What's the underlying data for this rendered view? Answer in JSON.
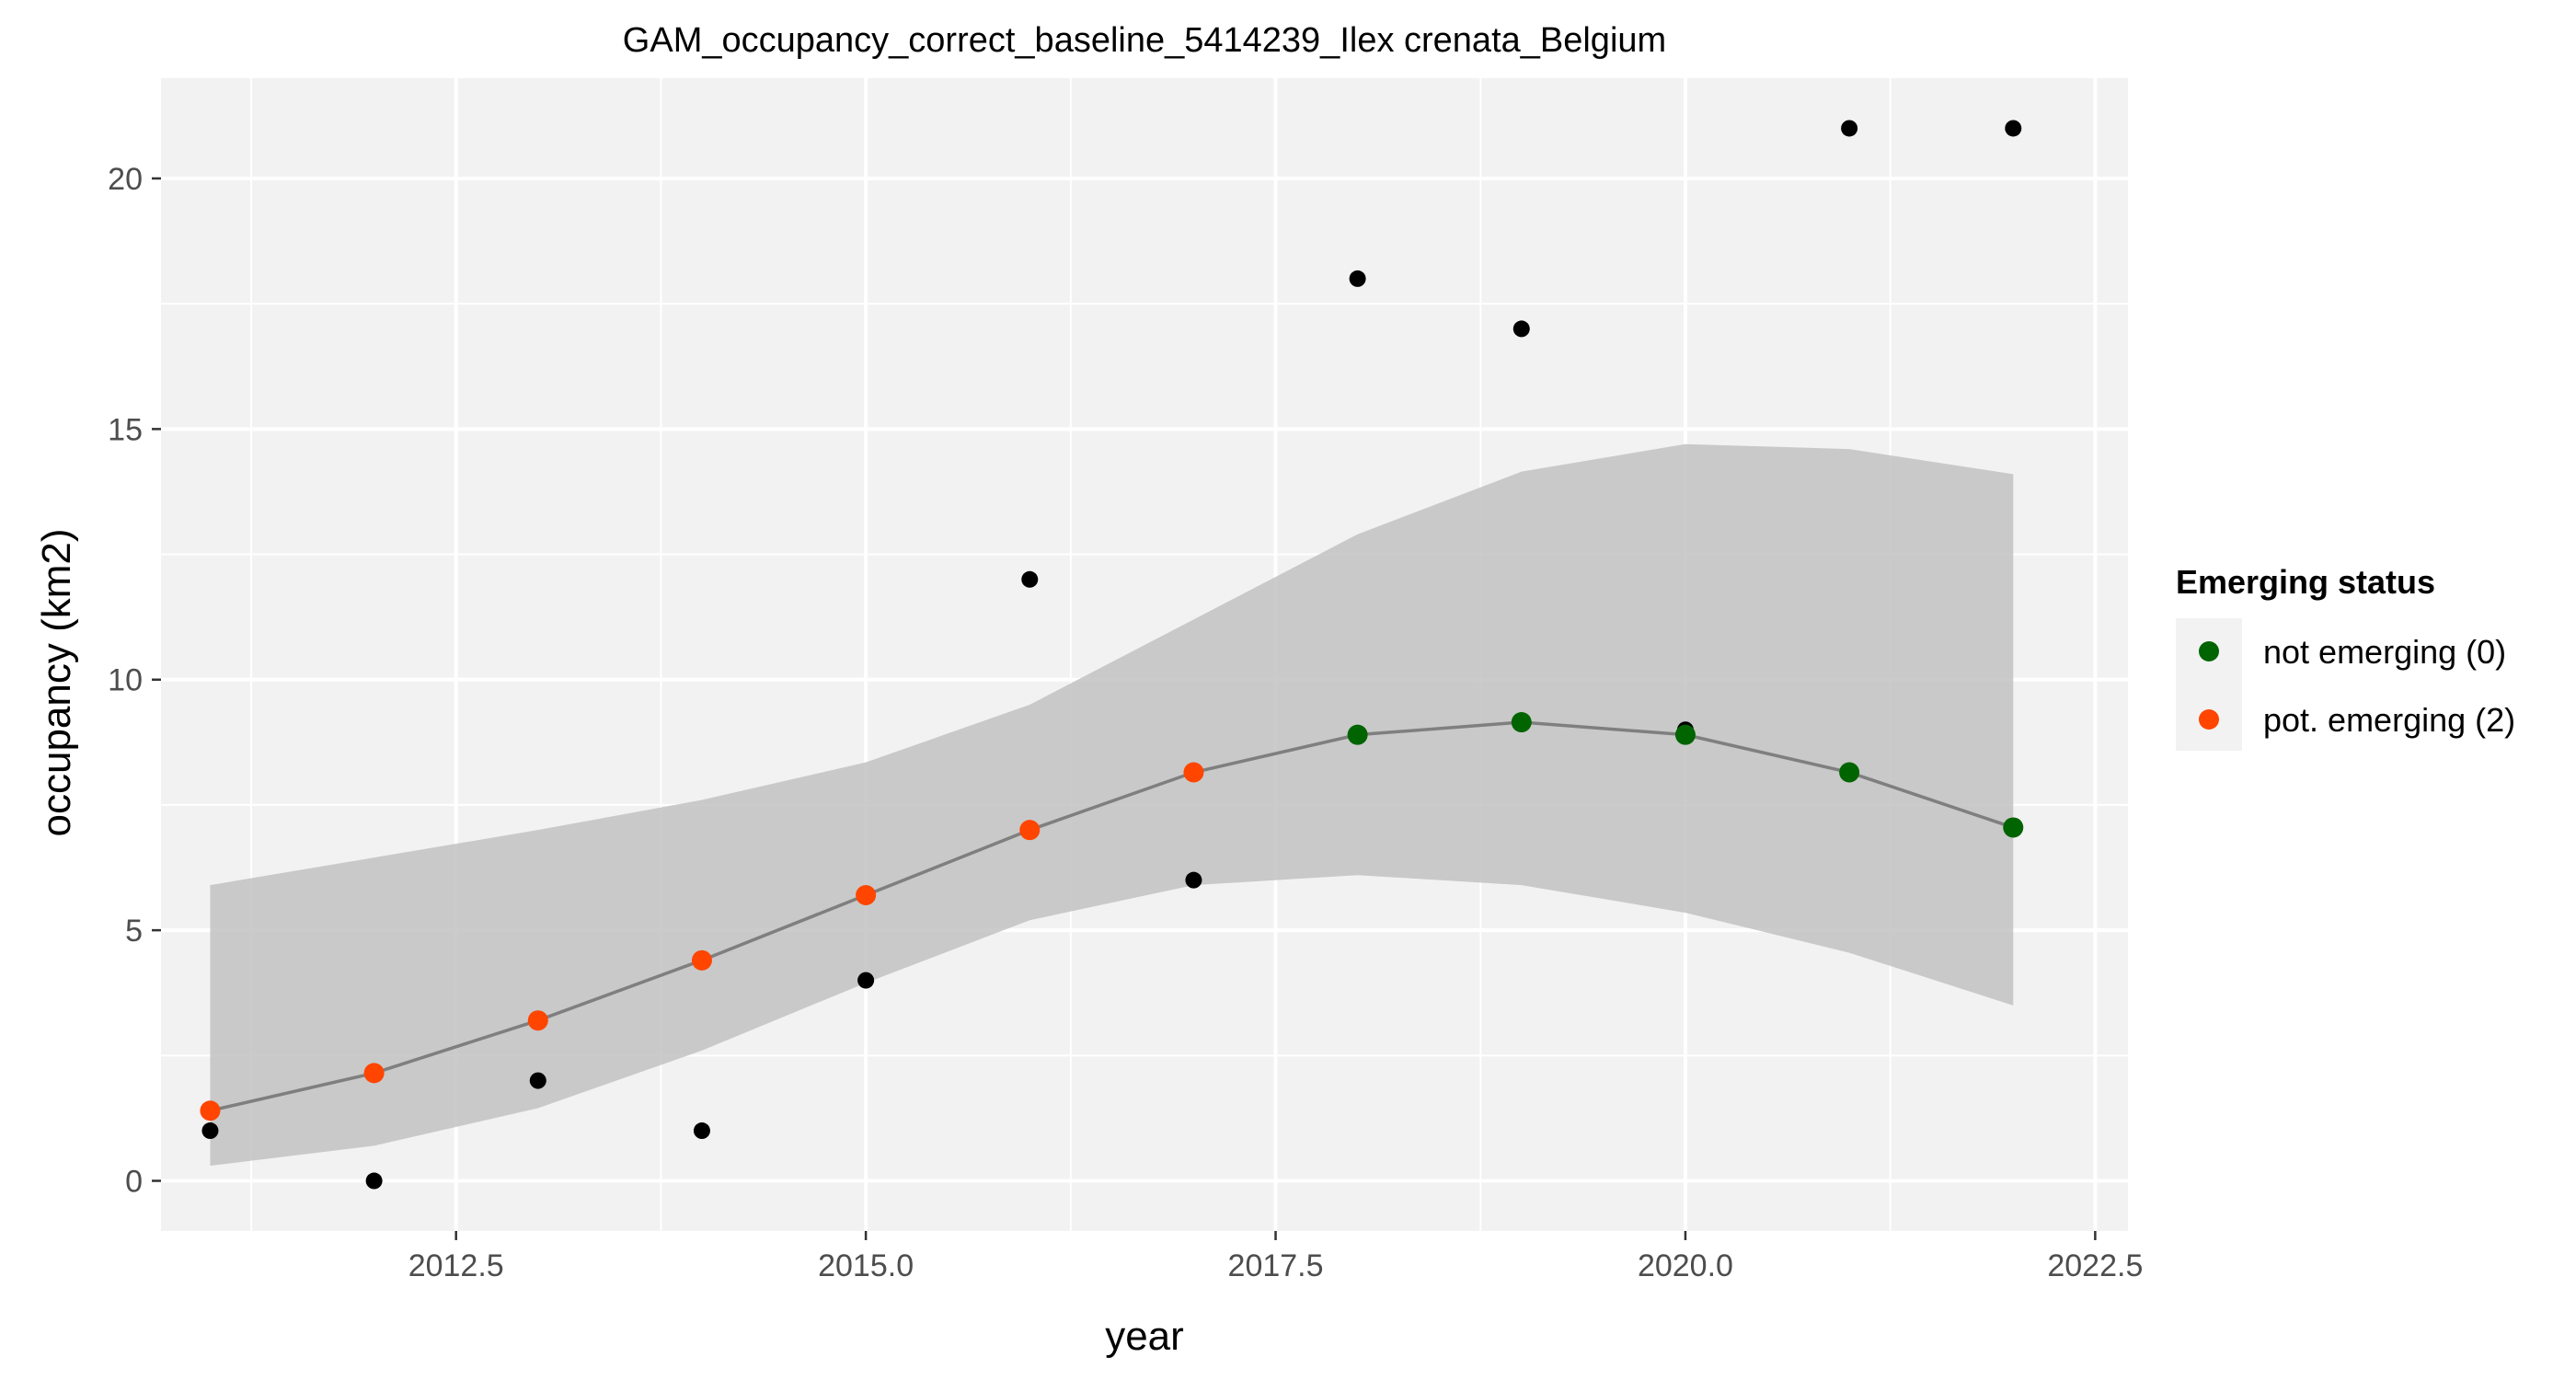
{
  "chart_data": {
    "type": "scatter",
    "title": "GAM_occupancy_correct_baseline_5414239_Ilex crenata_Belgium",
    "xlabel": "year",
    "ylabel": "occupancy (km2)",
    "xlim": [
      2010.7,
      2022.7
    ],
    "ylim": [
      -1.0,
      22.0
    ],
    "x_ticks": [
      2012.5,
      2015.0,
      2017.5,
      2020.0,
      2022.5
    ],
    "x_tick_labels": [
      "2012.5",
      "2015.0",
      "2017.5",
      "2020.0",
      "2022.5"
    ],
    "y_ticks": [
      0,
      5,
      10,
      15,
      20
    ],
    "y_tick_labels": [
      "0",
      "5",
      "10",
      "15",
      "20"
    ],
    "grid": true,
    "observed": {
      "x": [
        2011,
        2012,
        2013,
        2014,
        2015,
        2016,
        2017,
        2018,
        2019,
        2020,
        2021,
        2022
      ],
      "y": [
        1,
        0,
        2,
        1,
        4,
        12,
        6,
        18,
        17,
        9,
        21,
        21
      ],
      "color": "#000000"
    },
    "fit": {
      "x": [
        2011,
        2012,
        2013,
        2014,
        2015,
        2016,
        2017,
        2018,
        2019,
        2020,
        2021,
        2022
      ],
      "y": [
        1.4,
        2.15,
        3.2,
        4.4,
        5.7,
        7.0,
        8.15,
        8.9,
        9.15,
        8.9,
        8.15,
        7.05
      ],
      "lower": [
        0.3,
        0.7,
        1.45,
        2.6,
        3.95,
        5.2,
        5.9,
        6.1,
        5.9,
        5.35,
        4.55,
        3.5
      ],
      "upper": [
        5.9,
        6.45,
        7.0,
        7.6,
        8.35,
        9.5,
        11.2,
        12.9,
        14.15,
        14.7,
        14.6,
        14.1
      ],
      "status": [
        2,
        2,
        2,
        2,
        2,
        2,
        2,
        0,
        0,
        0,
        0,
        0
      ],
      "line_color": "#7f7f7f",
      "band_color": "#bebebe"
    },
    "legend": {
      "title": "Emerging status",
      "position": "right",
      "entries": [
        {
          "label": "not emerging (0)",
          "status": 0,
          "color": "#006400"
        },
        {
          "label": "pot. emerging (2)",
          "status": 2,
          "color": "#FF4500"
        }
      ]
    },
    "panel_background": "#f2f2f2",
    "grid_color": "#ffffff"
  }
}
